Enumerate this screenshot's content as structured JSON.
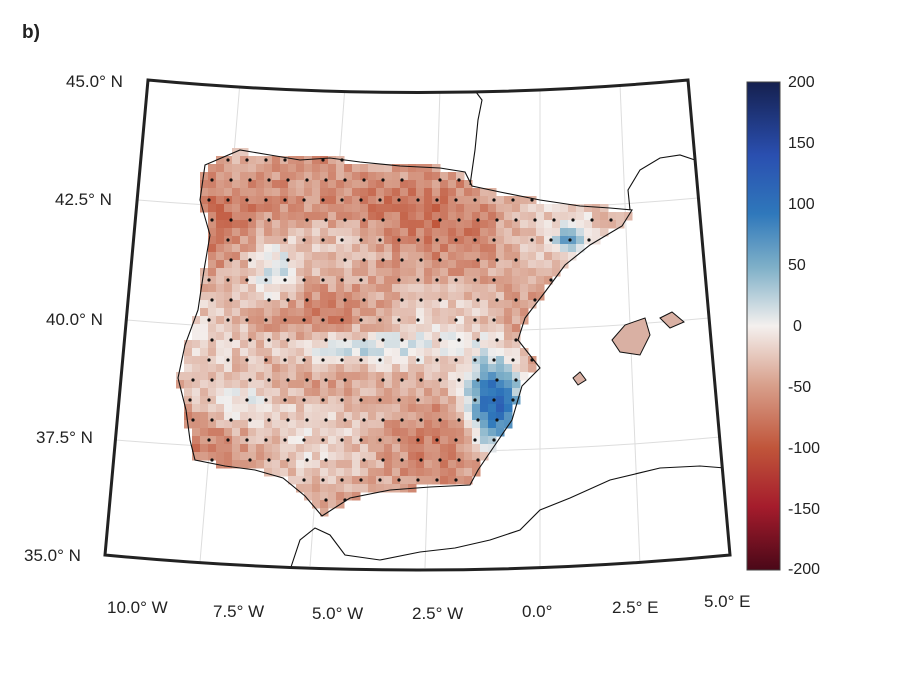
{
  "panel_label": "b)",
  "lat_labels": [
    "45.0° N",
    "42.5° N",
    "40.0° N",
    "37.5° N",
    "35.0° N"
  ],
  "lon_labels": [
    "10.0° W",
    "7.5° W",
    "5.0° W",
    "2.5° W",
    "0.0°",
    "2.5° E",
    "5.0° E"
  ],
  "colorbar": {
    "ticks": [
      "200",
      "150",
      "100",
      "50",
      "0",
      "-50",
      "-100",
      "-150",
      "-200"
    ],
    "range": [
      -200,
      200
    ],
    "colormap": "diverging red-white-blue",
    "colors": {
      "min": "#5a0a1e",
      "neg": "#c0553a",
      "zero": "#f4f0ee",
      "pos": "#4f93c0",
      "max": "#15204f"
    }
  },
  "map": {
    "region": "Iberian Peninsula",
    "projection": "conic",
    "graticule": true,
    "stippling": "significant grid points"
  }
}
